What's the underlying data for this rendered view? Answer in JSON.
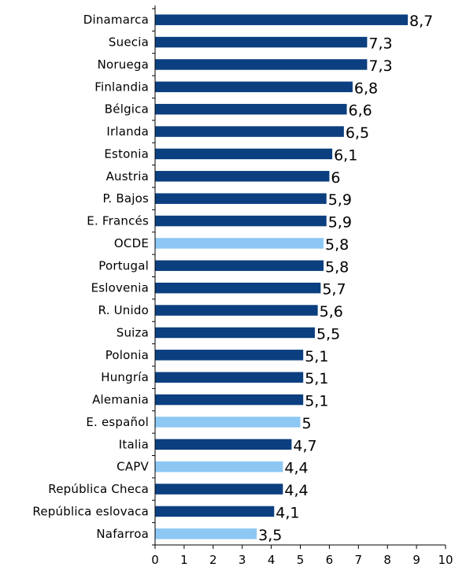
{
  "chart_data": {
    "type": "bar",
    "orientation": "horizontal",
    "categories": [
      "Dinamarca",
      "Suecia",
      "Noruega",
      "Finlandia",
      "Bélgica",
      "Irlanda",
      "Estonia",
      "Austria",
      "P. Bajos",
      "E. Francés",
      "OCDE",
      "Portugal",
      "Eslovenia",
      "R. Unido",
      "Suiza",
      "Polonia",
      "Hungría",
      "Alemania",
      "E. español",
      "Italia",
      "CAPV",
      "República Checa",
      "República eslovaca",
      "Nafarroa"
    ],
    "values": [
      8.7,
      7.3,
      7.3,
      6.8,
      6.6,
      6.5,
      6.1,
      6,
      5.9,
      5.9,
      5.8,
      5.8,
      5.7,
      5.6,
      5.5,
      5.1,
      5.1,
      5.1,
      5,
      4.7,
      4.4,
      4.4,
      4.1,
      3.5
    ],
    "value_labels": [
      "8,7",
      "7,3",
      "7,3",
      "6,8",
      "6,6",
      "6,5",
      "6,1",
      "6",
      "5,9",
      "5,9",
      "5,8",
      "5,8",
      "5,7",
      "5,6",
      "5,5",
      "5,1",
      "5,1",
      "5,1",
      "5",
      "4,7",
      "4,4",
      "4,4",
      "4,1",
      "3,5"
    ],
    "highlighted": [
      "OCDE",
      "E. español",
      "CAPV",
      "Nafarroa"
    ],
    "colors": {
      "default": "#0b3f7f",
      "highlight": "#8dc8f4",
      "axis": "#000000"
    },
    "xlim": [
      0,
      10
    ],
    "xticks": [
      0,
      1,
      2,
      3,
      4,
      5,
      6,
      7,
      8,
      9,
      10
    ],
    "title": "",
    "xlabel": "",
    "ylabel": "",
    "grid": false,
    "legend": "none"
  }
}
